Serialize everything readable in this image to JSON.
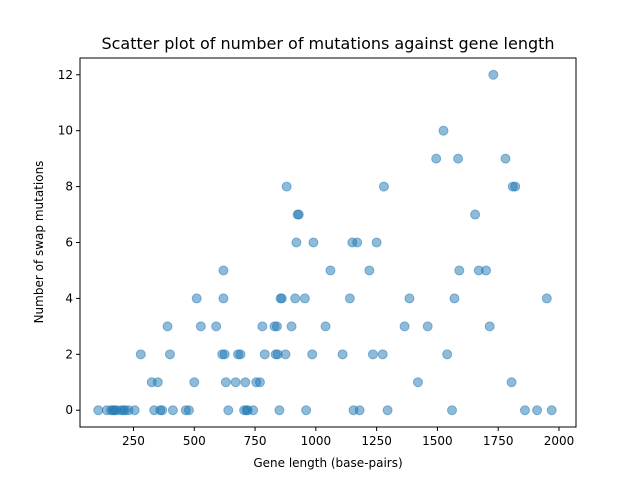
{
  "chart_data": {
    "type": "scatter",
    "title": "Scatter plot of number of mutations against gene length",
    "xlabel": "Gene length (base-pairs)",
    "ylabel": "Number of swap mutations",
    "xlim": [
      30,
      2070
    ],
    "ylim": [
      -0.6,
      12.6
    ],
    "xticks": [
      250,
      500,
      750,
      1000,
      1250,
      1500,
      1750,
      2000
    ],
    "yticks": [
      0,
      2,
      4,
      6,
      8,
      10,
      12
    ],
    "grid": false,
    "legend": "none",
    "marker_color": "#1f77b4",
    "marker_alpha": 0.5,
    "points": [
      [
        105,
        0
      ],
      [
        140,
        0
      ],
      [
        158,
        0
      ],
      [
        165,
        0
      ],
      [
        172,
        0
      ],
      [
        180,
        0
      ],
      [
        198,
        0
      ],
      [
        208,
        0
      ],
      [
        215,
        0
      ],
      [
        230,
        0
      ],
      [
        255,
        0
      ],
      [
        280,
        2
      ],
      [
        325,
        1
      ],
      [
        335,
        0
      ],
      [
        350,
        1
      ],
      [
        360,
        0
      ],
      [
        368,
        0
      ],
      [
        390,
        3
      ],
      [
        400,
        2
      ],
      [
        412,
        0
      ],
      [
        465,
        0
      ],
      [
        478,
        0
      ],
      [
        500,
        1
      ],
      [
        510,
        4
      ],
      [
        527,
        3
      ],
      [
        590,
        3
      ],
      [
        615,
        2
      ],
      [
        620,
        4
      ],
      [
        625,
        2
      ],
      [
        620,
        5
      ],
      [
        630,
        1
      ],
      [
        640,
        0
      ],
      [
        670,
        1
      ],
      [
        680,
        2
      ],
      [
        690,
        2
      ],
      [
        705,
        0
      ],
      [
        710,
        1
      ],
      [
        715,
        0
      ],
      [
        720,
        0
      ],
      [
        742,
        0
      ],
      [
        755,
        1
      ],
      [
        770,
        1
      ],
      [
        780,
        3
      ],
      [
        790,
        2
      ],
      [
        830,
        3
      ],
      [
        835,
        2
      ],
      [
        840,
        3
      ],
      [
        843,
        2
      ],
      [
        850,
        0
      ],
      [
        855,
        4
      ],
      [
        860,
        4
      ],
      [
        875,
        2
      ],
      [
        880,
        8
      ],
      [
        900,
        3
      ],
      [
        915,
        4
      ],
      [
        920,
        6
      ],
      [
        925,
        7
      ],
      [
        930,
        7
      ],
      [
        955,
        4
      ],
      [
        960,
        0
      ],
      [
        985,
        2
      ],
      [
        990,
        6
      ],
      [
        1040,
        3
      ],
      [
        1060,
        5
      ],
      [
        1110,
        2
      ],
      [
        1140,
        4
      ],
      [
        1150,
        6
      ],
      [
        1155,
        0
      ],
      [
        1170,
        6
      ],
      [
        1180,
        0
      ],
      [
        1220,
        5
      ],
      [
        1235,
        2
      ],
      [
        1250,
        6
      ],
      [
        1275,
        2
      ],
      [
        1280,
        8
      ],
      [
        1295,
        0
      ],
      [
        1365,
        3
      ],
      [
        1385,
        4
      ],
      [
        1420,
        1
      ],
      [
        1460,
        3
      ],
      [
        1495,
        9
      ],
      [
        1525,
        10
      ],
      [
        1540,
        2
      ],
      [
        1560,
        0
      ],
      [
        1570,
        4
      ],
      [
        1585,
        9
      ],
      [
        1590,
        5
      ],
      [
        1655,
        7
      ],
      [
        1670,
        5
      ],
      [
        1700,
        5
      ],
      [
        1715,
        3
      ],
      [
        1730,
        12
      ],
      [
        1780,
        9
      ],
      [
        1805,
        1
      ],
      [
        1810,
        8
      ],
      [
        1820,
        8
      ],
      [
        1860,
        0
      ],
      [
        1910,
        0
      ],
      [
        1950,
        4
      ],
      [
        1970,
        0
      ]
    ]
  }
}
